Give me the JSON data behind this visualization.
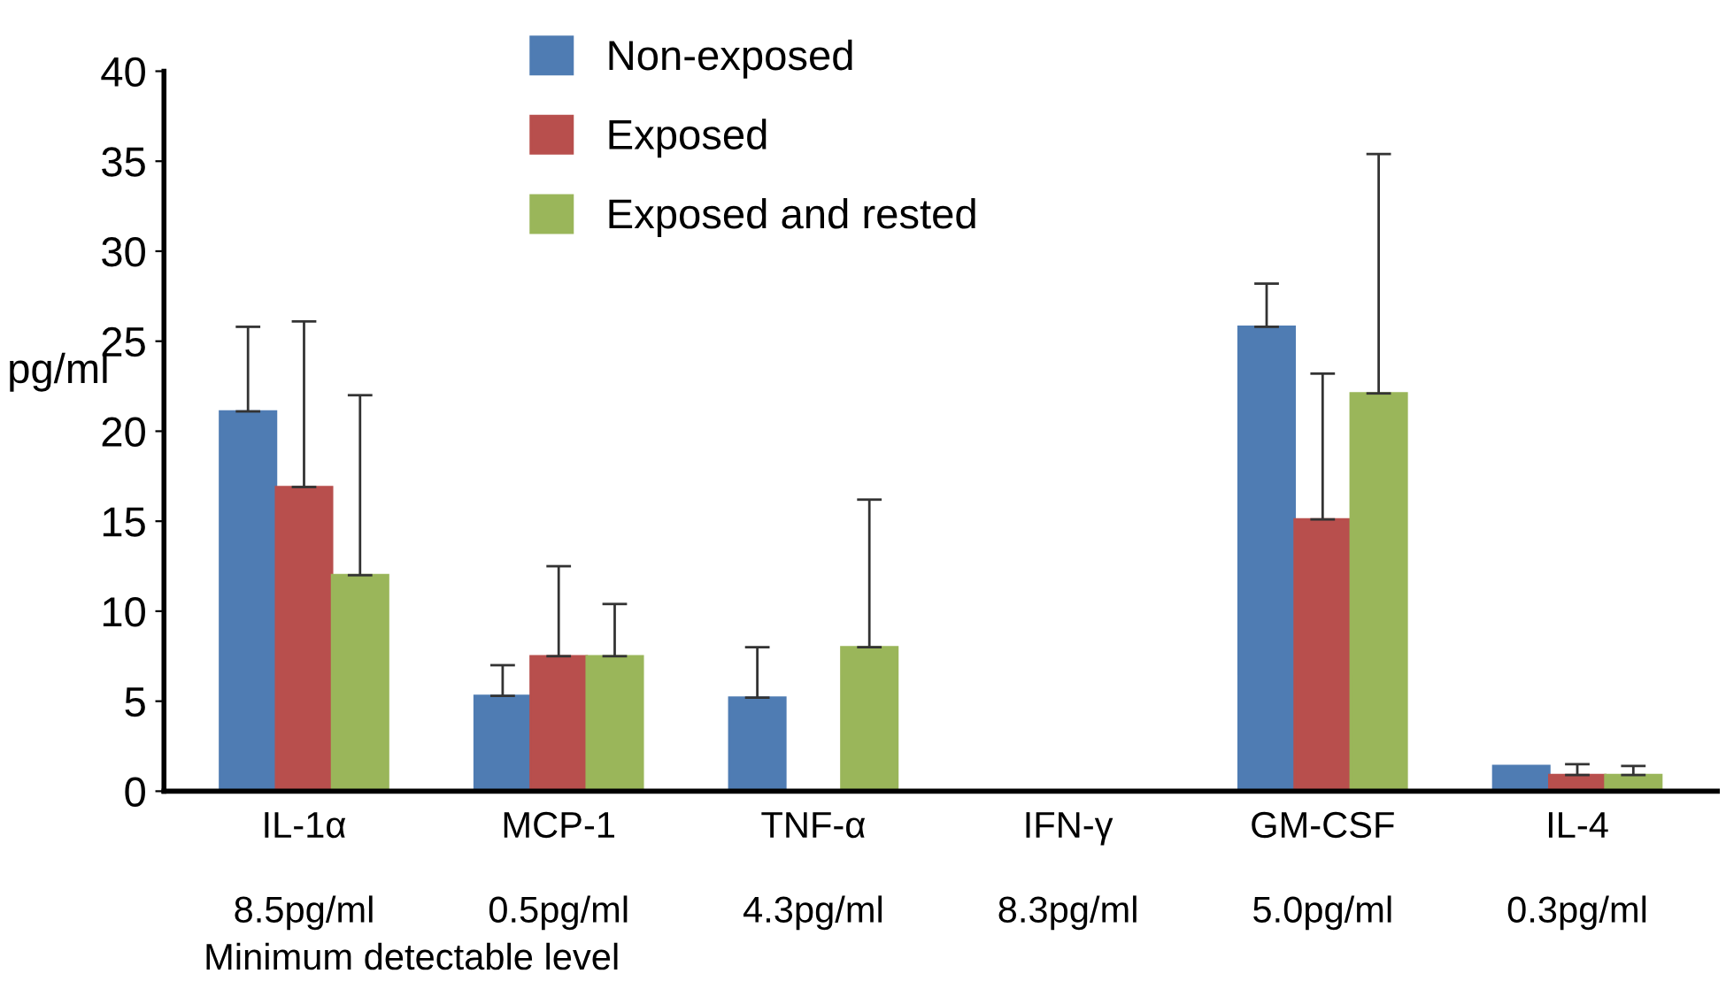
{
  "chart_data": {
    "type": "bar",
    "ylabel": "pg/ml",
    "categories": [
      "IL-1α\n\n8.5pg/ml",
      "MCP-1\n\n0.5pg/ml",
      "TNF-α\n\n4.3pg/ml",
      "IFN-γ\n\n8.3pg/ml",
      "GM-CSF\n\n5.0pg/ml",
      "IL-4\n\n0.3pg/ml"
    ],
    "series": [
      {
        "name": "Non-exposed",
        "color": "#4f7cb3",
        "values": [
          21.1,
          5.3,
          5.2,
          0,
          25.8,
          1.4
        ],
        "errors": [
          [
            21.1,
            25.8
          ],
          [
            5.3,
            7.0
          ],
          [
            5.2,
            8.0
          ],
          null,
          [
            25.8,
            28.2
          ],
          null
        ]
      },
      {
        "name": "Exposed",
        "color": "#b84f4d",
        "values": [
          16.9,
          7.5,
          0,
          0,
          15.1,
          0.9
        ],
        "errors": [
          [
            16.9,
            26.1
          ],
          [
            7.5,
            12.5
          ],
          null,
          null,
          [
            15.1,
            23.2
          ],
          [
            0.9,
            1.5
          ]
        ]
      },
      {
        "name": "Exposed and rested",
        "color": "#9ab65a",
        "values": [
          12.0,
          7.5,
          8.0,
          0,
          22.1,
          0.9
        ],
        "errors": [
          [
            12.0,
            22.0
          ],
          [
            7.5,
            10.4
          ],
          [
            8.0,
            16.2
          ],
          null,
          [
            22.1,
            35.4
          ],
          [
            0.9,
            1.4
          ]
        ]
      }
    ],
    "ylim": [
      0,
      40
    ],
    "yticks": [
      0,
      5,
      10,
      15,
      20,
      25,
      30,
      35,
      40
    ],
    "legend": "top",
    "grid": false,
    "annotations": [
      "Minimum detectable level"
    ]
  }
}
